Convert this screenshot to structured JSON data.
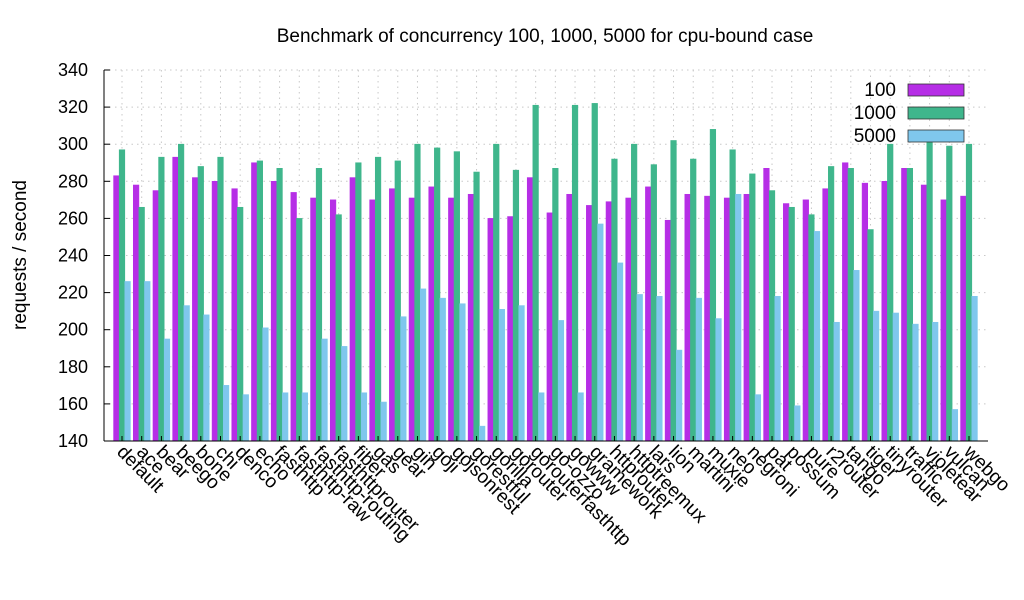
{
  "chart_data": {
    "type": "bar",
    "title": "Benchmark of concurrency 100, 1000, 5000 for cpu-bound case",
    "xlabel": "",
    "ylabel": "requests / second",
    "ylim": [
      140,
      340
    ],
    "yticks": [
      140,
      160,
      180,
      200,
      220,
      240,
      260,
      280,
      300,
      320,
      340
    ],
    "grid": true,
    "legend_position": "top-right",
    "categories": [
      "default",
      "ace",
      "bear",
      "beego",
      "bone",
      "chi",
      "denco",
      "echo",
      "fasthttp",
      "fasthttp-raw",
      "fasthttp-routing",
      "fasthttprouter",
      "fiber",
      "gas",
      "gear",
      "gin",
      "goji",
      "gojsonrest",
      "gorestful",
      "gorilla",
      "gorouter",
      "gorouterfasthttp",
      "go-ozzo",
      "gowww",
      "gramework",
      "httprouter",
      "httptreemux",
      "lars",
      "lion",
      "martini",
      "muxie",
      "neo",
      "negroni",
      "pat",
      "possum",
      "pure",
      "r2router",
      "tango",
      "tiger",
      "tinyrouter",
      "traffic",
      "violetear",
      "vulcan",
      "webgo"
    ],
    "series": [
      {
        "name": "100",
        "color": "#b62ee6",
        "values": [
          283,
          278,
          275,
          293,
          282,
          280,
          276,
          290,
          280,
          274,
          271,
          270,
          282,
          270,
          276,
          271,
          277,
          271,
          273,
          260,
          261,
          282,
          263,
          273,
          267,
          269,
          271,
          277,
          259,
          273,
          272,
          271,
          273,
          287,
          268,
          270,
          276,
          290,
          279,
          280,
          287,
          278,
          270,
          272
        ]
      },
      {
        "name": "1000",
        "color": "#3fb68c",
        "values": [
          297,
          266,
          293,
          300,
          288,
          293,
          266,
          291,
          287,
          260,
          287,
          262,
          290,
          293,
          291,
          300,
          298,
          296,
          285,
          300,
          286,
          321,
          287,
          321,
          322,
          292,
          300,
          289,
          302,
          292,
          308,
          297,
          284,
          275,
          266,
          262,
          288,
          287,
          254,
          300,
          287,
          304,
          299,
          300
        ]
      },
      {
        "name": "5000",
        "color": "#7fc7ed",
        "values": [
          226,
          226,
          195,
          213,
          208,
          170,
          165,
          201,
          166,
          166,
          195,
          191,
          166,
          161,
          207,
          222,
          217,
          214,
          148,
          211,
          213,
          166,
          205,
          166,
          257,
          236,
          219,
          218,
          189,
          217,
          206,
          273,
          165,
          218,
          159,
          253,
          204,
          232,
          210,
          209,
          203,
          204,
          157,
          218
        ]
      }
    ]
  }
}
